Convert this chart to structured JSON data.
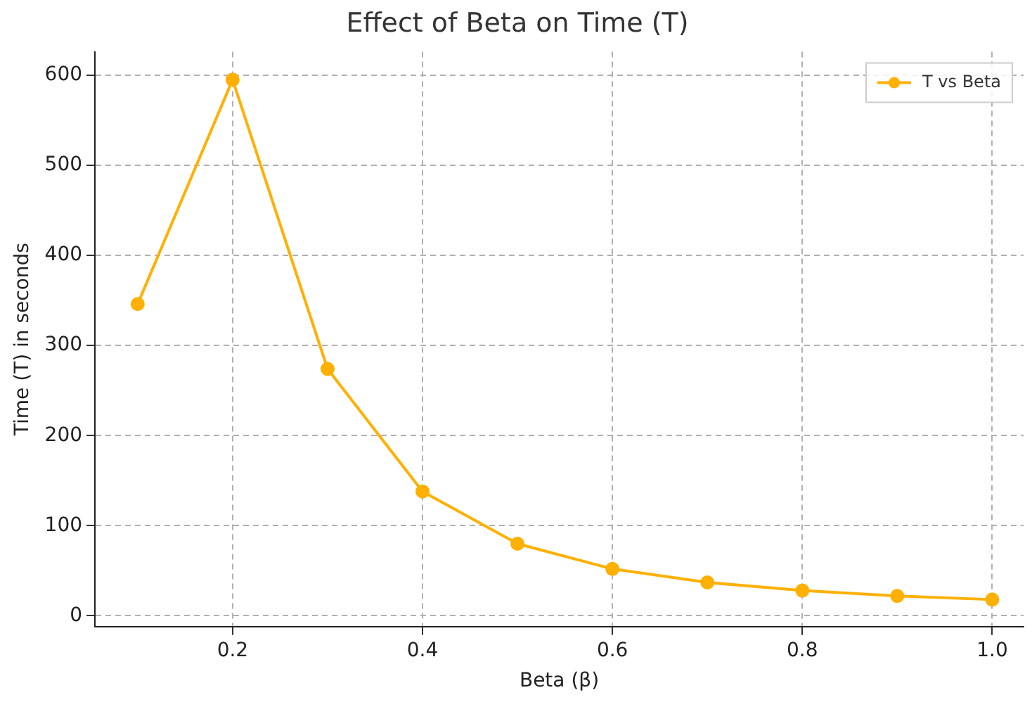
{
  "chart_data": {
    "type": "line",
    "title": "Effect of Beta on Time (T)",
    "xlabel": "Beta (β)",
    "ylabel": "Time (T) in seconds",
    "x": [
      0.1,
      0.2,
      0.3,
      0.4,
      0.5,
      0.6,
      0.7,
      0.8,
      0.9,
      1.0
    ],
    "series": [
      {
        "name": "T vs Beta",
        "color": "#ffb000",
        "values": [
          346,
          595,
          274,
          138,
          80,
          52,
          37,
          28,
          22,
          18
        ]
      }
    ],
    "xlim": [
      0.055,
      1.033
    ],
    "xticks": [
      {
        "value": 0.2,
        "label": "0.2"
      },
      {
        "value": 0.4,
        "label": "0.4"
      },
      {
        "value": 0.6,
        "label": "0.6"
      },
      {
        "value": 0.8,
        "label": "0.8"
      },
      {
        "value": 1.0,
        "label": "1.0"
      }
    ],
    "ylim": [
      -12,
      626
    ],
    "yticks": [
      0,
      100,
      200,
      300,
      400,
      500,
      600
    ],
    "grid": true,
    "legend": "top right",
    "marker": "circle",
    "line_style": "solid"
  }
}
